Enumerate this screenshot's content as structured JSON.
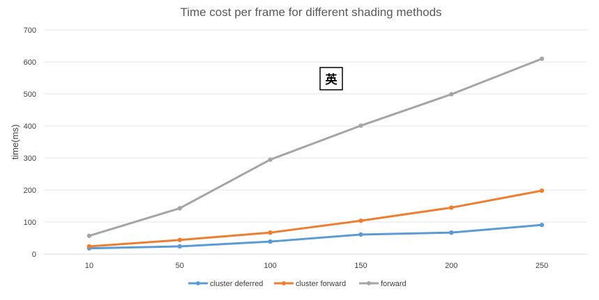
{
  "chart_data": {
    "type": "line",
    "title": "Time cost per frame for different shading methods",
    "xlabel": "",
    "ylabel": "time(ms)",
    "categories": [
      "10",
      "50",
      "100",
      "150",
      "200",
      "250"
    ],
    "ylim": [
      0,
      700
    ],
    "yticks": [
      "0",
      "100",
      "200",
      "300",
      "400",
      "500",
      "600",
      "700"
    ],
    "grid": true,
    "legend_position": "bottom",
    "series": [
      {
        "name": "cluster deferred",
        "color": "#5b9bd5",
        "values": [
          18,
          24,
          39,
          61,
          67,
          91
        ]
      },
      {
        "name": "cluster forward",
        "color": "#ed7d31",
        "values": [
          24,
          44,
          67,
          104,
          145,
          198
        ]
      },
      {
        "name": "forward",
        "color": "#a5a5a5",
        "values": [
          57,
          143,
          295,
          401,
          499,
          610
        ]
      }
    ]
  },
  "overlay": {
    "ime_indicator": "英"
  }
}
